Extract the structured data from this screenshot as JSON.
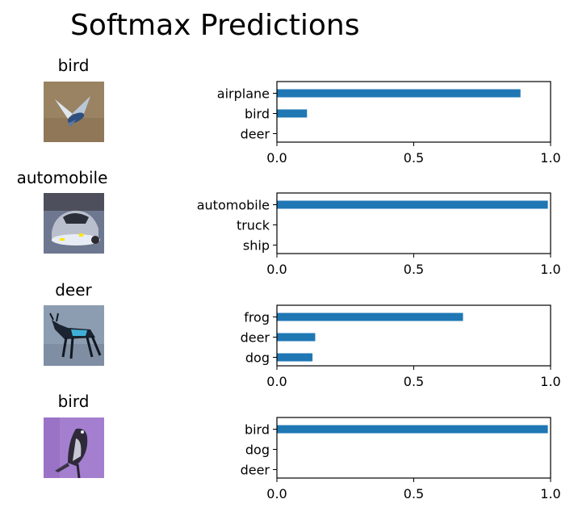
{
  "title": "Softmax Predictions",
  "colors": {
    "bar": "#1f77b4",
    "axis": "#000000"
  },
  "chart_data": [
    {
      "type": "bar",
      "orientation": "horizontal",
      "image_label": "bird",
      "image_icon": "bird-photo-blue-bird-flying",
      "categories": [
        "airplane",
        "bird",
        "deer"
      ],
      "values": [
        0.89,
        0.11,
        0.0
      ],
      "xlim": [
        0.0,
        1.0
      ],
      "xticks": [
        "0.0",
        "0.5",
        "1.0"
      ],
      "grid": false
    },
    {
      "type": "bar",
      "orientation": "horizontal",
      "image_label": "automobile",
      "image_icon": "car-photo-silver-car",
      "categories": [
        "automobile",
        "truck",
        "ship"
      ],
      "values": [
        0.99,
        0.0,
        0.0
      ],
      "xlim": [
        0.0,
        1.0
      ],
      "xticks": [
        "0.0",
        "0.5",
        "1.0"
      ],
      "grid": false
    },
    {
      "type": "bar",
      "orientation": "horizontal",
      "image_label": "deer",
      "image_icon": "deer-photo-dark-deer",
      "categories": [
        "frog",
        "deer",
        "dog"
      ],
      "values": [
        0.68,
        0.14,
        0.13
      ],
      "xlim": [
        0.0,
        1.0
      ],
      "xticks": [
        "0.0",
        "0.5",
        "1.0"
      ],
      "grid": false
    },
    {
      "type": "bar",
      "orientation": "horizontal",
      "image_label": "bird",
      "image_icon": "bird-photo-perched-bird-purple",
      "categories": [
        "bird",
        "dog",
        "deer"
      ],
      "values": [
        0.99,
        0.0,
        0.0
      ],
      "xlim": [
        0.0,
        1.0
      ],
      "xticks": [
        "0.0",
        "0.5",
        "1.0"
      ],
      "grid": false
    }
  ]
}
